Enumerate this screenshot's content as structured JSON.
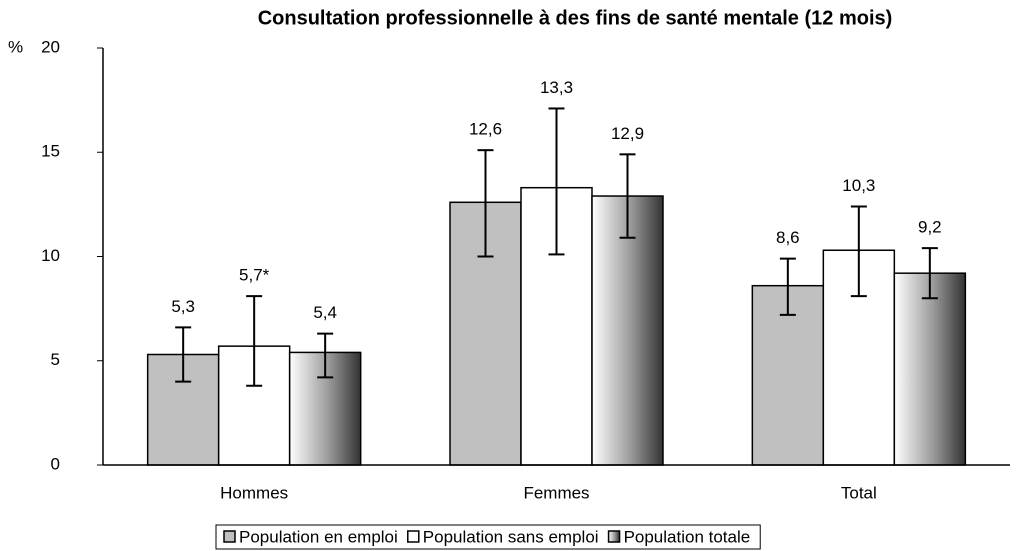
{
  "chart_data": {
    "type": "bar",
    "title": "Consultation professionnelle à des fins de santé mentale (12 mois)",
    "y_label": "%",
    "categories": [
      "Hommes",
      "Femmes",
      "Total"
    ],
    "series": [
      {
        "name": "Population en emploi",
        "color": "#c0c0c0",
        "values": [
          5.3,
          12.6,
          8.6
        ],
        "value_labels": [
          "5,3",
          "12,6",
          "8,6"
        ],
        "lower": [
          4.0,
          10.0,
          7.2
        ],
        "upper": [
          6.6,
          15.1,
          9.9
        ]
      },
      {
        "name": "Population sans emploi",
        "color": "#ffffff",
        "values": [
          5.7,
          13.3,
          10.3
        ],
        "value_labels": [
          "5,7*",
          "13,3",
          "10,3"
        ],
        "lower": [
          3.8,
          10.1,
          8.1
        ],
        "upper": [
          8.1,
          17.1,
          12.4
        ]
      },
      {
        "name": "Population totale",
        "color": "#9a9a9a",
        "gradient": true,
        "values": [
          5.4,
          12.9,
          9.2
        ],
        "value_labels": [
          "5,4",
          "12,9",
          "9,2"
        ],
        "lower": [
          4.2,
          10.9,
          8.0
        ],
        "upper": [
          6.3,
          14.9,
          10.4
        ]
      }
    ],
    "ylim": [
      0,
      20
    ],
    "yticks": [
      0,
      5,
      10,
      15,
      20
    ],
    "grid": false,
    "legend": "bottom"
  }
}
